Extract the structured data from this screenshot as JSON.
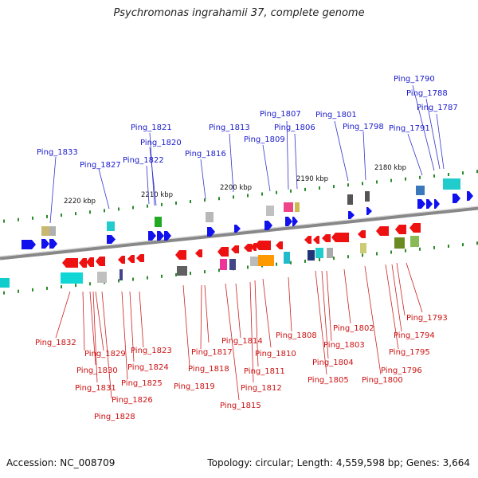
{
  "title": "Psychromonas ingrahamii 37, complete genome",
  "footer": {
    "accession": "Accession: NC_008709",
    "topology": "Topology: circular; Length: 4,559,598 bp; Genes: 3,664"
  },
  "scale_ticks": [
    "2220 kbp",
    "2210 kbp",
    "2200 kbp",
    "2190 kbp",
    "2180 kbp"
  ],
  "top_labels": [
    "Ping_1833",
    "Ping_1827",
    "Ping_1822",
    "Ping_1820",
    "Ping_1821",
    "Ping_1816",
    "Ping_1813",
    "Ping_1809",
    "Ping_1807",
    "Ping_1806",
    "Ping_1801",
    "Ping_1798",
    "Ping_1791",
    "Ping_1790",
    "Ping_1788",
    "Ping_1787"
  ],
  "bottom_labels": [
    "Ping_1832",
    "Ping_1829",
    "Ping_1830",
    "Ping_1831",
    "Ping_1828",
    "Ping_1826",
    "Ping_1825",
    "Ping_1824",
    "Ping_1823",
    "Ping_1819",
    "Ping_1818",
    "Ping_1817",
    "Ping_1815",
    "Ping_1814",
    "Ping_1812",
    "Ping_1811",
    "Ping_1810",
    "Ping_1808",
    "Ping_1805",
    "Ping_1804",
    "Ping_1803",
    "Ping_1802",
    "Ping_1800",
    "Ping_1796",
    "Ping_1795",
    "Ping_1794",
    "Ping_1793"
  ],
  "colors": {
    "forward": "#1111ee",
    "reverse": "#ee1111",
    "top_label": "#1a1acc",
    "bottom_label": "#cc1111"
  }
}
